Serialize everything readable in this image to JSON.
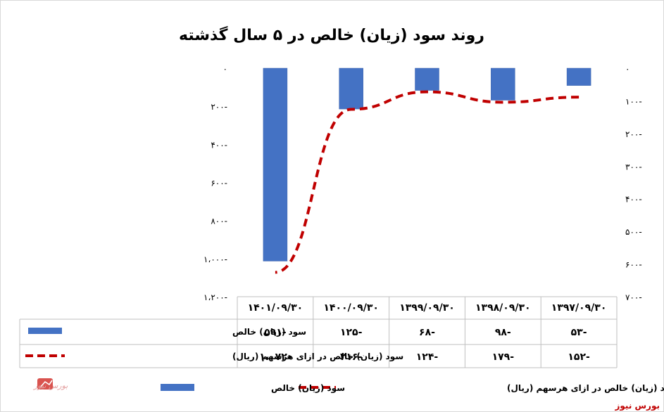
{
  "chart_data": {
    "type": "bar+line",
    "title": "روند سود (زیان) خالص در ۵ سال گذشته",
    "categories": [
      "۱۳۹۷/۰۹/۳۰",
      "۱۳۹۸/۰۹/۳۰",
      "۱۳۹۹/۰۹/۳۰",
      "۱۴۰۰/۰۹/۳۰",
      "۱۴۰۱/۰۹/۳۰"
    ],
    "category_order": "right-to-left",
    "series": [
      {
        "name": "سود (زیان) خالص",
        "type": "bar",
        "axis": "right",
        "color": "#4472c4",
        "values": [
          -53,
          -98,
          -68,
          -125,
          -591
        ],
        "labels": [
          "۵۳-",
          "۹۸-",
          "۶۸-",
          "۱۲۵-",
          "۵۹۱-"
        ]
      },
      {
        "name": "سود (زیان) خالص در ازای هرسهم (ریال)",
        "type": "line",
        "style": "dashed",
        "axis": "left",
        "color": "#c00000",
        "values": [
          -152,
          -179,
          -124,
          -216,
          -1072
        ],
        "labels": [
          "۱۵۲-",
          "۱۷۹-",
          "۱۲۴-",
          "۲۱۶-",
          "۱،۰۷۲-"
        ]
      }
    ],
    "left_axis": {
      "ylim": [
        -1200,
        0
      ],
      "ticks": [
        0,
        -200,
        -400,
        -600,
        -800,
        -1000,
        -1200
      ],
      "tick_labels": [
        "۰",
        "۲۰۰-",
        "۴۰۰-",
        "۶۰۰-",
        "۸۰۰-",
        "۱،۰۰۰-",
        "۱،۲۰۰-"
      ]
    },
    "right_axis": {
      "ylim": [
        -700,
        0
      ],
      "ticks": [
        0,
        -100,
        -200,
        -300,
        -400,
        -500,
        -600,
        -700
      ],
      "tick_labels": [
        "۰",
        "۱۰۰-",
        "۲۰۰-",
        "۳۰۰-",
        "۴۰۰-",
        "۵۰۰-",
        "۶۰۰-",
        "۷۰۰-"
      ]
    },
    "legend_position": "bottom",
    "data_table": true,
    "grid": false
  },
  "watermark_brand": "بورس نیوز",
  "watermark_text": "بورس نیوز"
}
